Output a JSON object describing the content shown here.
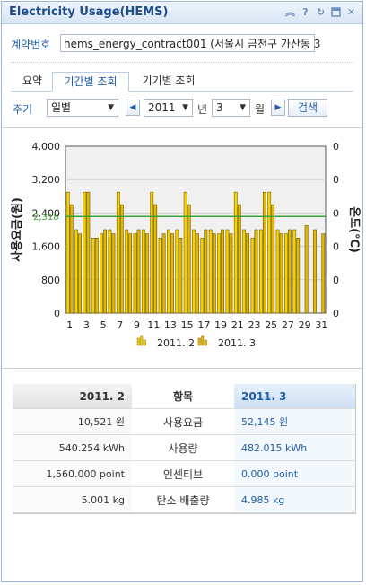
{
  "window": {
    "title": "Electricity Usage(HEMS)"
  },
  "titlebar_icons": [
    "collapse-icon",
    "help-icon",
    "refresh-icon",
    "maximize-icon",
    "close-icon"
  ],
  "contract": {
    "label": "계약번호",
    "value": "hems_energy_contract001 (서울시 금천구 가산동 3"
  },
  "tabs": [
    {
      "label": "요약",
      "active": false
    },
    {
      "label": "기간별 조회",
      "active": true
    },
    {
      "label": "기기별 조회",
      "active": false
    }
  ],
  "controls": {
    "period_label": "주기",
    "period_value": "일별",
    "year_value": "2011",
    "year_unit": "년",
    "month_value": "3",
    "month_unit": "월",
    "search_label": "검색"
  },
  "chart_data": {
    "type": "bar",
    "categories": [
      "1",
      "2",
      "3",
      "4",
      "5",
      "6",
      "7",
      "8",
      "9",
      "10",
      "11",
      "12",
      "13",
      "14",
      "15",
      "16",
      "17",
      "18",
      "19",
      "20",
      "21",
      "22",
      "23",
      "24",
      "25",
      "26",
      "27",
      "28",
      "29",
      "30",
      "31"
    ],
    "series": [
      {
        "name": "2011. 2",
        "values": [
          2900,
          2000,
          2900,
          1800,
          1900,
          2000,
          2900,
          2000,
          1900,
          2000,
          2900,
          1800,
          2000,
          2000,
          2900,
          2000,
          1800,
          2000,
          1900,
          2000,
          2900,
          2000,
          1800,
          2000,
          2900,
          2000,
          1900,
          2000,
          0,
          0,
          0
        ]
      },
      {
        "name": "2011. 3",
        "values": [
          2600,
          1900,
          2900,
          1800,
          2000,
          1900,
          2600,
          1900,
          2000,
          1900,
          2600,
          1900,
          1900,
          1800,
          2600,
          1900,
          2000,
          1900,
          2000,
          1900,
          2600,
          1900,
          2000,
          2900,
          2600,
          1900,
          2000,
          1800,
          2100,
          2000,
          1900
        ]
      }
    ],
    "y_left": {
      "label": "사용요금(원)",
      "ticks": [
        "4,000",
        "3,200",
        "2,400",
        "1,600",
        "800",
        "0"
      ],
      "min": 0,
      "max": 4000
    },
    "y_right": {
      "label": "온도(℃)",
      "ticks": [
        "0",
        "0",
        "0",
        "0",
        "0",
        "0"
      ]
    },
    "x_ticks": [
      "1",
      "3",
      "5",
      "7",
      "9",
      "11",
      "13",
      "15",
      "17",
      "19",
      "21",
      "23",
      "25",
      "27",
      "29",
      "31"
    ],
    "average_line": {
      "value": 2318,
      "label": "2,318",
      "color": "#3aa43a"
    },
    "colors": {
      "series_a": "#f6d200",
      "series_b": "#e5b800",
      "plot_bg": "#f0f0f0"
    }
  },
  "table": {
    "header": {
      "prev": "2011. 2",
      "item": "항목",
      "curr": "2011. 3"
    },
    "rows": [
      {
        "prev": "10,521 원",
        "item": "사용요금",
        "curr": "52,145 원"
      },
      {
        "prev": "540.254 kWh",
        "item": "사용량",
        "curr": "482.015 kWh"
      },
      {
        "prev": "1,560.000 point",
        "item": "인센티브",
        "curr": "0.000 point"
      },
      {
        "prev": "5.001 kg",
        "item": "탄소 배출량",
        "curr": "4.985 kg"
      }
    ]
  }
}
